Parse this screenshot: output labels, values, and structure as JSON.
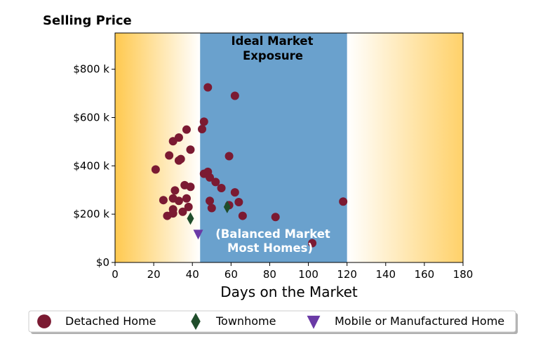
{
  "colors": {
    "detached": "#7b1a32",
    "townhome": "#1f4d2b",
    "mobile": "#6a3aa6",
    "band": "#6aa1cd",
    "gradient_edge": "#ffc94f"
  },
  "chart_data": {
    "type": "scatter",
    "title": "Selling Price",
    "xlabel": "Days on the Market",
    "ylabel": "",
    "xlim": [
      0,
      180
    ],
    "ylim": [
      0,
      950000
    ],
    "x_ticks": [
      0,
      20,
      40,
      60,
      80,
      100,
      120,
      140,
      160,
      180
    ],
    "x_tick_labels": [
      "0",
      "20",
      "40",
      "60",
      "80",
      "100",
      "120",
      "140",
      "160",
      "180"
    ],
    "y_ticks": [
      0,
      200000,
      400000,
      600000,
      800000
    ],
    "y_tick_labels": [
      "$0",
      "$200 k",
      "$400 k",
      "$600 k",
      "$800 k"
    ],
    "band": {
      "x_start": 44,
      "x_end": 120
    },
    "annotations": {
      "top_line1": "Ideal Market",
      "top_line2": "Exposure",
      "bottom_line1": "(Balanced Market",
      "bottom_line2": "Most Homes)"
    },
    "legend": {
      "placement": "bottom-center"
    },
    "series": [
      {
        "name": "Detached Home",
        "marker": "circle",
        "points": [
          [
            21,
            385000
          ],
          [
            25,
            258000
          ],
          [
            27,
            193000
          ],
          [
            28,
            443000
          ],
          [
            30,
            502000
          ],
          [
            30,
            265000
          ],
          [
            30,
            220000
          ],
          [
            30,
            203000
          ],
          [
            31,
            298000
          ],
          [
            33,
            517000
          ],
          [
            33,
            422000
          ],
          [
            33,
            255000
          ],
          [
            34,
            428000
          ],
          [
            35,
            210000
          ],
          [
            36,
            320000
          ],
          [
            37,
            550000
          ],
          [
            37,
            265000
          ],
          [
            38,
            230000
          ],
          [
            39,
            467000
          ],
          [
            39,
            313000
          ],
          [
            45,
            552000
          ],
          [
            46,
            583000
          ],
          [
            46,
            367000
          ],
          [
            48,
            725000
          ],
          [
            48,
            375000
          ],
          [
            49,
            352000
          ],
          [
            49,
            255000
          ],
          [
            50,
            225000
          ],
          [
            52,
            333000
          ],
          [
            55,
            308000
          ],
          [
            59,
            440000
          ],
          [
            59,
            237000
          ],
          [
            62,
            690000
          ],
          [
            62,
            290000
          ],
          [
            64,
            250000
          ],
          [
            66,
            193000
          ],
          [
            83,
            188000
          ],
          [
            102,
            80000
          ],
          [
            118,
            252000
          ]
        ]
      },
      {
        "name": "Townhome",
        "marker": "thin_diamond",
        "points": [
          [
            39,
            182000
          ],
          [
            58,
            230000
          ]
        ]
      },
      {
        "name": "Mobile or Manufactured Home",
        "marker": "triangle_down",
        "points": [
          [
            43,
            118000
          ]
        ]
      }
    ]
  }
}
